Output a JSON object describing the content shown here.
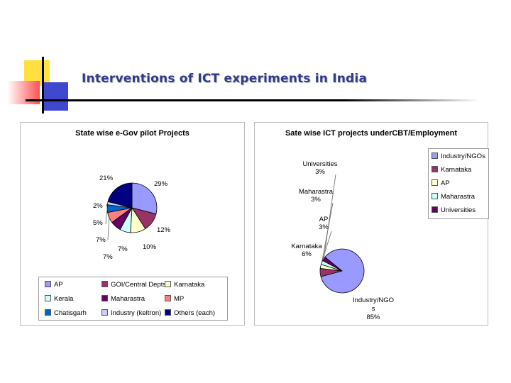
{
  "title": "Interventions of ICT experiments in India",
  "colors": {
    "AP": "#9999ff",
    "GOI": "#993366",
    "Karnataka": "#ffffcc",
    "Kerala": "#ccffff",
    "Maharastra": "#660066",
    "MP": "#ff8080",
    "Chatisgarh": "#0066cc",
    "Industry": "#ccccff",
    "Others": "#000080",
    "deco_yellow": "#ffe040",
    "deco_red": "#ff5050",
    "deco_blue": "#4048d0"
  },
  "chart_data": [
    {
      "type": "pie",
      "title": "State wise e-Gov pilot Projects",
      "slices": [
        {
          "name": "AP",
          "value": 29,
          "label": "29%",
          "color": "#9999ff"
        },
        {
          "name": "GOI/Central Depts.",
          "value": 12,
          "label": "12%",
          "color": "#993366"
        },
        {
          "name": "Karnataka",
          "value": 10,
          "label": "10%",
          "color": "#ffffcc"
        },
        {
          "name": "Kerala",
          "value": 7,
          "label": "7%",
          "color": "#ccffff"
        },
        {
          "name": "Maharastra",
          "value": 7,
          "label": "7%",
          "color": "#660066"
        },
        {
          "name": "MP",
          "value": 7,
          "label": "7%",
          "color": "#ff8080"
        },
        {
          "name": "Chatisgarh",
          "value": 5,
          "label": "5%",
          "color": "#0066cc"
        },
        {
          "name": "Industry (keltron)",
          "value": 2,
          "label": "2%",
          "color": "#ccccff"
        },
        {
          "name": "Others (each)",
          "value": 21,
          "label": "21%",
          "color": "#000080"
        }
      ],
      "legend": "bottom"
    },
    {
      "type": "pie",
      "title": "Sate wise ICT projects underCBT/Employment",
      "slices": [
        {
          "name": "Industry/NGOs",
          "value": 85,
          "label": "85%",
          "outer_label": "Industry/NGO s",
          "color": "#9999ff"
        },
        {
          "name": "Karnataka",
          "value": 6,
          "label": "6%",
          "outer_label": "Karnataka",
          "color": "#993366"
        },
        {
          "name": "AP",
          "value": 3,
          "label": "3%",
          "outer_label": "AP",
          "color": "#ffffcc"
        },
        {
          "name": "Maharastra",
          "value": 3,
          "label": "3%",
          "outer_label": "Maharastra",
          "color": "#ccffff"
        },
        {
          "name": "Universities",
          "value": 3,
          "label": "3%",
          "outer_label": "Universities",
          "color": "#660066"
        }
      ],
      "legend": "top-right"
    }
  ]
}
